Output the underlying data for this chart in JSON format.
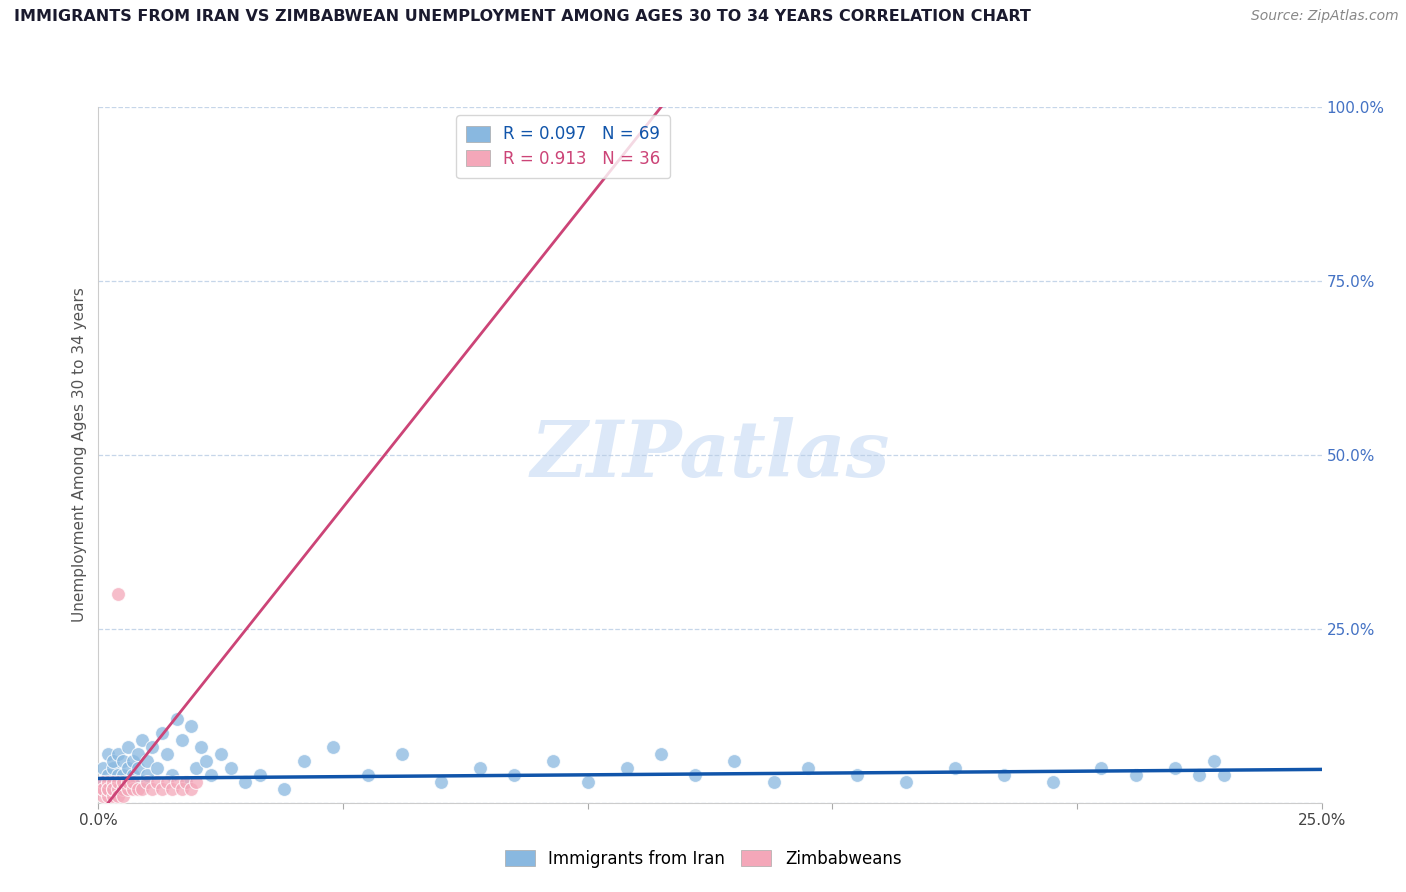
{
  "title": "IMMIGRANTS FROM IRAN VS ZIMBABWEAN UNEMPLOYMENT AMONG AGES 30 TO 34 YEARS CORRELATION CHART",
  "source": "Source: ZipAtlas.com",
  "ylabel": "Unemployment Among Ages 30 to 34 years",
  "xlim": [
    0,
    0.25
  ],
  "ylim": [
    0,
    1.0
  ],
  "xticks": [
    0.0,
    0.05,
    0.1,
    0.15,
    0.2,
    0.25
  ],
  "yticks": [
    0.0,
    0.25,
    0.5,
    0.75,
    1.0
  ],
  "ytick_labels": [
    "",
    "25.0%",
    "50.0%",
    "75.0%",
    "100.0%"
  ],
  "xtick_labels": [
    "0.0%",
    "",
    "",
    "",
    "",
    "25.0%"
  ],
  "blue_color": "#89b8e0",
  "pink_color": "#f4a7b9",
  "blue_line_color": "#1155aa",
  "pink_line_color": "#cc4477",
  "R_blue": 0.097,
  "N_blue": 69,
  "R_pink": 0.913,
  "N_pink": 36,
  "watermark": "ZIPatlas",
  "watermark_color": "#dce8f8",
  "blue_scatter_x": [
    0.001,
    0.001,
    0.002,
    0.002,
    0.002,
    0.003,
    0.003,
    0.003,
    0.004,
    0.004,
    0.004,
    0.005,
    0.005,
    0.005,
    0.006,
    0.006,
    0.006,
    0.007,
    0.007,
    0.008,
    0.008,
    0.009,
    0.009,
    0.01,
    0.01,
    0.011,
    0.012,
    0.013,
    0.014,
    0.015,
    0.016,
    0.017,
    0.018,
    0.019,
    0.02,
    0.021,
    0.022,
    0.023,
    0.025,
    0.027,
    0.03,
    0.033,
    0.038,
    0.042,
    0.048,
    0.055,
    0.062,
    0.07,
    0.078,
    0.085,
    0.093,
    0.1,
    0.108,
    0.115,
    0.122,
    0.13,
    0.138,
    0.145,
    0.155,
    0.165,
    0.175,
    0.185,
    0.195,
    0.205,
    0.212,
    0.22,
    0.225,
    0.228,
    0.23
  ],
  "blue_scatter_y": [
    0.03,
    0.05,
    0.02,
    0.07,
    0.04,
    0.03,
    0.05,
    0.06,
    0.04,
    0.03,
    0.07,
    0.04,
    0.06,
    0.02,
    0.05,
    0.03,
    0.08,
    0.04,
    0.06,
    0.05,
    0.07,
    0.03,
    0.09,
    0.06,
    0.04,
    0.08,
    0.05,
    0.1,
    0.07,
    0.04,
    0.12,
    0.09,
    0.03,
    0.11,
    0.05,
    0.08,
    0.06,
    0.04,
    0.07,
    0.05,
    0.03,
    0.04,
    0.02,
    0.06,
    0.08,
    0.04,
    0.07,
    0.03,
    0.05,
    0.04,
    0.06,
    0.03,
    0.05,
    0.07,
    0.04,
    0.06,
    0.03,
    0.05,
    0.04,
    0.03,
    0.05,
    0.04,
    0.03,
    0.05,
    0.04,
    0.05,
    0.04,
    0.06,
    0.04
  ],
  "pink_scatter_x": [
    0.001,
    0.001,
    0.001,
    0.001,
    0.002,
    0.002,
    0.002,
    0.002,
    0.003,
    0.003,
    0.003,
    0.003,
    0.004,
    0.004,
    0.004,
    0.005,
    0.005,
    0.005,
    0.006,
    0.006,
    0.007,
    0.007,
    0.008,
    0.009,
    0.01,
    0.011,
    0.012,
    0.013,
    0.014,
    0.015,
    0.016,
    0.017,
    0.018,
    0.019,
    0.02,
    0.004
  ],
  "pink_scatter_y": [
    0.01,
    0.02,
    0.03,
    0.02,
    0.01,
    0.02,
    0.03,
    0.02,
    0.01,
    0.02,
    0.03,
    0.02,
    0.02,
    0.03,
    0.01,
    0.02,
    0.03,
    0.01,
    0.02,
    0.03,
    0.02,
    0.03,
    0.02,
    0.02,
    0.03,
    0.02,
    0.03,
    0.02,
    0.03,
    0.02,
    0.03,
    0.02,
    0.03,
    0.02,
    0.03,
    0.3
  ],
  "blue_line_x": [
    0.0,
    0.25
  ],
  "blue_line_y": [
    0.035,
    0.048
  ],
  "pink_line_x": [
    0.002,
    0.115
  ],
  "pink_line_y": [
    0.0,
    1.0
  ]
}
